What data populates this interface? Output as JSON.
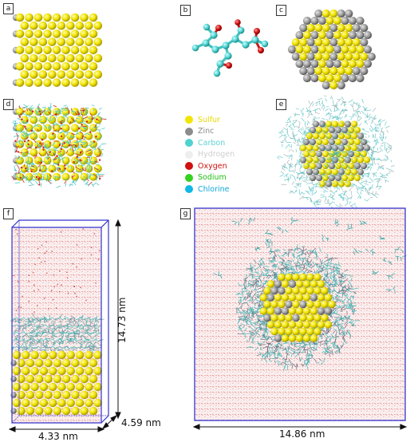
{
  "panels": {
    "a": "a",
    "b": "b",
    "c": "c",
    "d": "d",
    "e": "e",
    "f": "f",
    "g": "g"
  },
  "legend": [
    {
      "label": "Sulfur",
      "color": "#f2e500",
      "text_color": "#e8d800"
    },
    {
      "label": "Zinc",
      "color": "#8c8c8c",
      "text_color": "#8c8c8c"
    },
    {
      "label": "Carbon",
      "color": "#4fd2d0",
      "text_color": "#5fd3d3"
    },
    {
      "label": "Hydrogen",
      "color": "#eeeeee",
      "text_color": "#cfcfcf"
    },
    {
      "label": "Oxygen",
      "color": "#d11010",
      "text_color": "#d11010"
    },
    {
      "label": "Sodium",
      "color": "#33d21e",
      "text_color": "#22c013"
    },
    {
      "label": "Chlorine",
      "color": "#10b8e6",
      "text_color": "#10a8d8"
    }
  ],
  "dimensions": {
    "f_height": "14.73 nm",
    "f_width": "4.33 nm",
    "f_depth": "4.59 nm",
    "g_width": "14.86 nm"
  },
  "colors": {
    "box_edge": "#3333cc",
    "sulfur": "#f2e500",
    "zinc": "#9a9a9a",
    "carbon": "#4fd2d0",
    "oxygen": "#d11010"
  }
}
